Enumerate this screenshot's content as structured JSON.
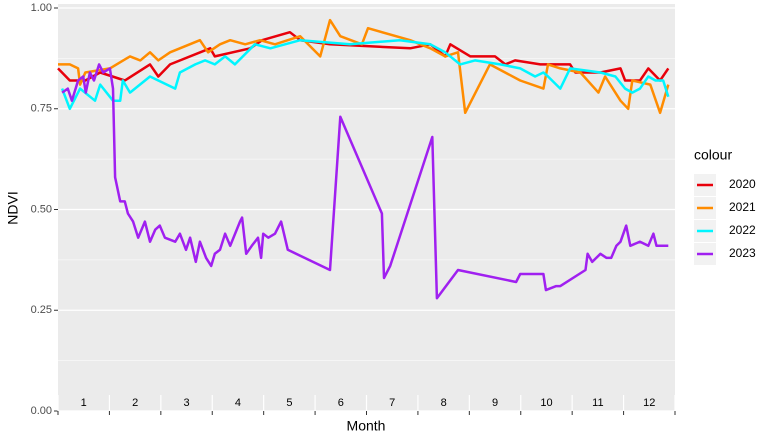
{
  "chart_data": {
    "type": "line",
    "x_label": "Month",
    "y_label": "NDVI",
    "legend_title": "colour",
    "legend": "right",
    "xlim": [
      0.5,
      12.5
    ],
    "ylim": [
      0,
      1
    ],
    "xticks": [
      1,
      2,
      3,
      4,
      5,
      6,
      7,
      8,
      9,
      10,
      11,
      12
    ],
    "yticks": [
      {
        "value": 0,
        "label": "0.00"
      },
      0.25,
      {
        "value": 0.5,
        "label": "0.50"
      },
      0.75,
      {
        "value": 1,
        "label": "1.00"
      }
    ],
    "grid": true,
    "series": [
      {
        "name": "2020",
        "color": "#e8000b",
        "x": [
          0.5,
          0.73,
          1.03,
          1.32,
          1.8,
          2.29,
          2.45,
          2.68,
          3.46,
          3.55,
          4.24,
          4.47,
          5.01,
          5.21,
          5.79,
          7.35,
          7.74,
          8.03,
          8.13,
          8.52,
          9.0,
          9.2,
          9.39,
          9.88,
          10.17,
          10.46,
          10.56,
          11.05,
          11.44,
          11.53,
          11.82,
          11.98,
          12.21,
          12.37
        ],
        "values": [
          0.85,
          0.82,
          0.82,
          0.84,
          0.82,
          0.86,
          0.83,
          0.86,
          0.9,
          0.88,
          0.9,
          0.92,
          0.94,
          0.92,
          0.91,
          0.9,
          0.91,
          0.88,
          0.91,
          0.88,
          0.88,
          0.86,
          0.87,
          0.86,
          0.86,
          0.86,
          0.84,
          0.84,
          0.85,
          0.82,
          0.82,
          0.85,
          0.82,
          0.85
        ]
      },
      {
        "name": "2021",
        "color": "#ff8c00",
        "x": [
          0.5,
          0.73,
          0.89,
          0.93,
          1.03,
          1.51,
          1.9,
          2.1,
          2.29,
          2.45,
          2.68,
          3.26,
          3.42,
          3.65,
          3.85,
          4.14,
          4.43,
          4.72,
          5.21,
          5.6,
          5.79,
          5.99,
          6.41,
          6.53,
          7.35,
          7.74,
          8.03,
          8.28,
          8.42,
          8.9,
          9.49,
          9.94,
          10.03,
          10.27,
          10.66,
          11.01,
          11.14,
          11.44,
          11.59,
          11.67,
          12.02,
          12.21,
          12.37
        ],
        "values": [
          0.86,
          0.86,
          0.85,
          0.81,
          0.84,
          0.85,
          0.88,
          0.87,
          0.89,
          0.87,
          0.89,
          0.92,
          0.89,
          0.91,
          0.92,
          0.91,
          0.92,
          0.91,
          0.93,
          0.88,
          0.97,
          0.93,
          0.91,
          0.95,
          0.92,
          0.9,
          0.88,
          0.89,
          0.74,
          0.86,
          0.82,
          0.8,
          0.86,
          0.85,
          0.84,
          0.79,
          0.83,
          0.77,
          0.75,
          0.82,
          0.81,
          0.74,
          0.81
        ]
      },
      {
        "name": "2022",
        "color": "#00f5ff",
        "x": [
          0.58,
          0.73,
          0.93,
          1.22,
          1.32,
          1.57,
          1.71,
          1.76,
          1.9,
          2.29,
          2.45,
          2.78,
          2.87,
          3.17,
          3.36,
          3.55,
          3.75,
          3.94,
          4.33,
          4.63,
          5.21,
          6.18,
          7.15,
          7.74,
          8.03,
          8.32,
          8.61,
          9.1,
          9.49,
          9.78,
          9.94,
          10.03,
          10.27,
          10.46,
          11.05,
          11.34,
          11.53,
          11.67,
          11.82,
          11.98,
          12.12,
          12.27,
          12.37
        ],
        "values": [
          0.8,
          0.75,
          0.8,
          0.77,
          0.81,
          0.77,
          0.77,
          0.82,
          0.79,
          0.83,
          0.82,
          0.8,
          0.84,
          0.86,
          0.87,
          0.86,
          0.88,
          0.86,
          0.91,
          0.9,
          0.92,
          0.91,
          0.92,
          0.91,
          0.89,
          0.86,
          0.87,
          0.86,
          0.85,
          0.83,
          0.84,
          0.83,
          0.8,
          0.85,
          0.84,
          0.83,
          0.8,
          0.79,
          0.8,
          0.83,
          0.82,
          0.82,
          0.78
        ]
      },
      {
        "name": "2023",
        "color": "#a020f0",
        "x": [
          0.58,
          0.69,
          0.77,
          0.89,
          0.99,
          1.04,
          1.12,
          1.2,
          1.3,
          1.38,
          1.51,
          1.57,
          1.61,
          1.71,
          1.8,
          1.86,
          1.96,
          2.06,
          2.19,
          2.29,
          2.39,
          2.48,
          2.58,
          2.78,
          2.87,
          2.99,
          3.07,
          3.18,
          3.26,
          3.38,
          3.48,
          3.55,
          3.65,
          3.75,
          3.85,
          4.04,
          4.08,
          4.16,
          4.27,
          4.39,
          4.45,
          4.49,
          4.59,
          4.72,
          4.84,
          4.97,
          5.79,
          5.99,
          6.8,
          6.84,
          6.96,
          7.78,
          7.87,
          8.28,
          9.41,
          9.49,
          9.94,
          9.99,
          10.19,
          10.27,
          10.76,
          10.8,
          10.89,
          11.05,
          11.17,
          11.26,
          11.36,
          11.44,
          11.55,
          11.63,
          11.82,
          11.98,
          12.08,
          12.14,
          12.37
        ],
        "values": [
          0.79,
          0.8,
          0.77,
          0.82,
          0.83,
          0.79,
          0.84,
          0.82,
          0.86,
          0.84,
          0.85,
          0.8,
          0.58,
          0.52,
          0.52,
          0.49,
          0.47,
          0.43,
          0.47,
          0.42,
          0.45,
          0.46,
          0.43,
          0.42,
          0.44,
          0.4,
          0.43,
          0.37,
          0.42,
          0.38,
          0.36,
          0.39,
          0.4,
          0.44,
          0.41,
          0.47,
          0.48,
          0.39,
          0.41,
          0.43,
          0.38,
          0.44,
          0.43,
          0.44,
          0.47,
          0.4,
          0.35,
          0.73,
          0.49,
          0.33,
          0.36,
          0.68,
          0.28,
          0.35,
          0.32,
          0.34,
          0.34,
          0.3,
          0.31,
          0.31,
          0.35,
          0.39,
          0.37,
          0.39,
          0.38,
          0.38,
          0.41,
          0.42,
          0.46,
          0.41,
          0.42,
          0.41,
          0.44,
          0.41,
          0.41
        ]
      }
    ]
  }
}
